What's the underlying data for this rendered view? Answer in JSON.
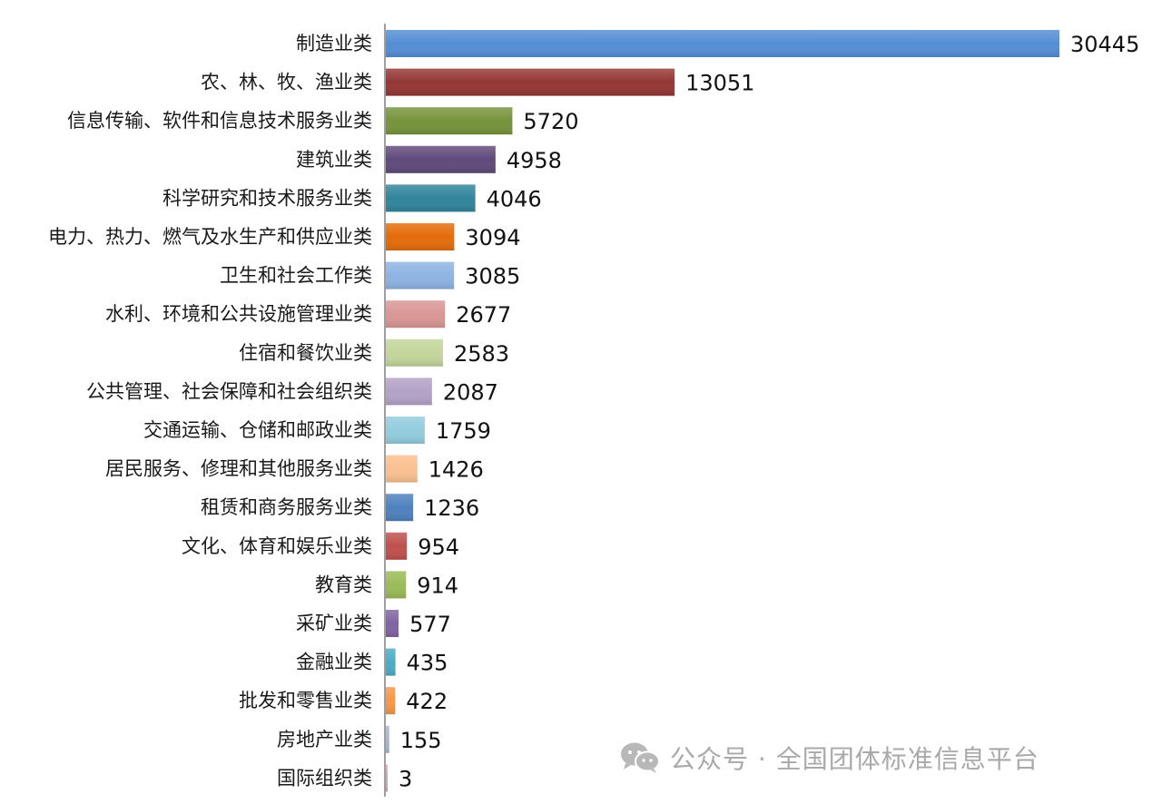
{
  "chart_data": {
    "type": "bar",
    "orientation": "horizontal",
    "categories": [
      "制造业类",
      "农、林、牧、渔业类",
      "信息传输、软件和信息技术服务业类",
      "建筑业类",
      "科学研究和技术服务业类",
      "电力、热力、燃气及水生产和供应业类",
      "卫生和社会工作类",
      "水利、环境和公共设施管理业类",
      "住宿和餐饮业类",
      "公共管理、社会保障和社会组织类",
      "交通运输、仓储和邮政业类",
      "居民服务、修理和其他服务业类",
      "租赁和商务服务业类",
      "文化、体育和娱乐业类",
      "教育类",
      "采矿业类",
      "金融业类",
      "批发和零售业类",
      "房地产业类",
      "国际组织类"
    ],
    "values": [
      30445,
      13051,
      5720,
      4958,
      4046,
      3094,
      3085,
      2677,
      2583,
      2087,
      1759,
      1426,
      1236,
      954,
      914,
      577,
      435,
      422,
      155,
      3
    ],
    "value_labels": [
      "30445",
      "13051",
      "5720",
      "4958",
      "4046",
      "3094",
      "3085",
      "2677",
      "2583",
      "2087",
      "1759",
      "1426",
      "1236",
      "954",
      "914",
      "577",
      "435",
      "422",
      "155",
      "3"
    ],
    "colors": [
      "#558ed5",
      "#953735",
      "#77933c",
      "#604a7b",
      "#31859c",
      "#e46c0a",
      "#8eb4e3",
      "#d99694",
      "#c3d69b",
      "#b3a2c7",
      "#93cddd",
      "#fac090",
      "#4f81bd",
      "#c0504d",
      "#9bbb59",
      "#8064a2",
      "#4bacc6",
      "#f79646",
      "#a5b6d3",
      "#d4a8a7"
    ],
    "title": "",
    "xlabel": "",
    "ylabel": "",
    "xlim": [
      0,
      30445
    ],
    "grid": false,
    "legend": "none"
  },
  "watermark": {
    "icon": "wechat-icon",
    "text": "公众号 · 全国团体标准信息平台"
  }
}
